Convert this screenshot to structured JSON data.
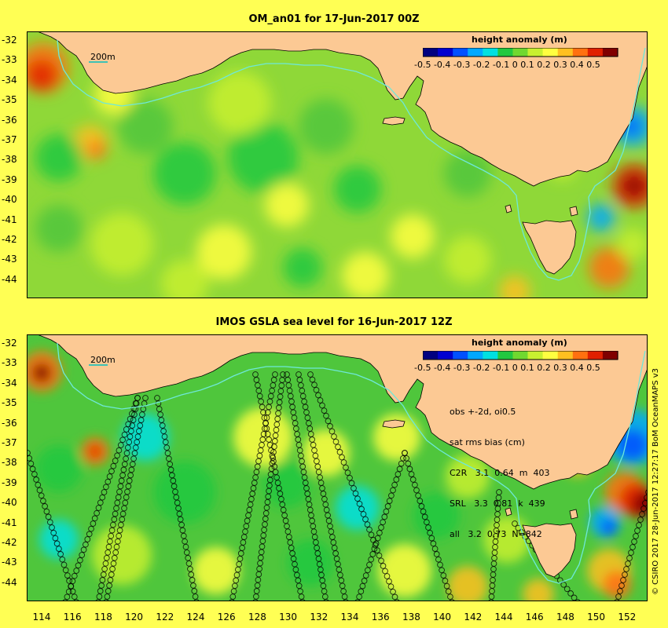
{
  "top_panel": {
    "title": "OM_an01 for 17-Jun-2017 00Z",
    "colorbar_title": "height anomaly (m)",
    "colorbar_ticks": "-0.5 -0.4 -0.3 -0.2 -0.1   0   0.1  0.2  0.3  0.4  0.5",
    "scale_label": "200m"
  },
  "bottom_panel": {
    "title": "IMOS GSLA sea level  for 16-Jun-2017 12Z",
    "colorbar_title": "height anomaly (m)",
    "colorbar_ticks": "-0.5 -0.4 -0.3 -0.2 -0.1   0   0.1  0.2  0.3  0.4  0.5",
    "scale_label": "200m",
    "stats": {
      "line1": "obs +-2d, oi0.5",
      "line2": "sat rms bias (cm)",
      "line3": "C2R   3.1  0.64  m  403",
      "line4": "SRL   3.3  0.81  k  439",
      "line5": "all   3.2  0.73  N=842"
    }
  },
  "y_axis_labels": [
    "-32",
    "-33",
    "-34",
    "-35",
    "-36",
    "-37",
    "-38",
    "-39",
    "-40",
    "-41",
    "-42",
    "-43",
    "-44"
  ],
  "x_axis_labels": [
    "114",
    "116",
    "118",
    "120",
    "122",
    "124",
    "126",
    "128",
    "130",
    "132",
    "134",
    "136",
    "138",
    "140",
    "142",
    "144",
    "146",
    "148",
    "150",
    "152"
  ],
  "credit": "© CSIRO 2017  28-Jun-2017 12:27:17 BoM OceanMAPS v3",
  "colors": {
    "background": "#ffff54",
    "land": "#fcc994",
    "ocean_base": "#4fc63c",
    "shelf_contour": "#6ee8d8"
  },
  "colormap": [
    "#000080",
    "#0000d0",
    "#0050ff",
    "#00a8ff",
    "#00e0e0",
    "#22c840",
    "#70d830",
    "#c8f030",
    "#ffff40",
    "#ffc020",
    "#ff7010",
    "#e02000",
    "#800000"
  ]
}
